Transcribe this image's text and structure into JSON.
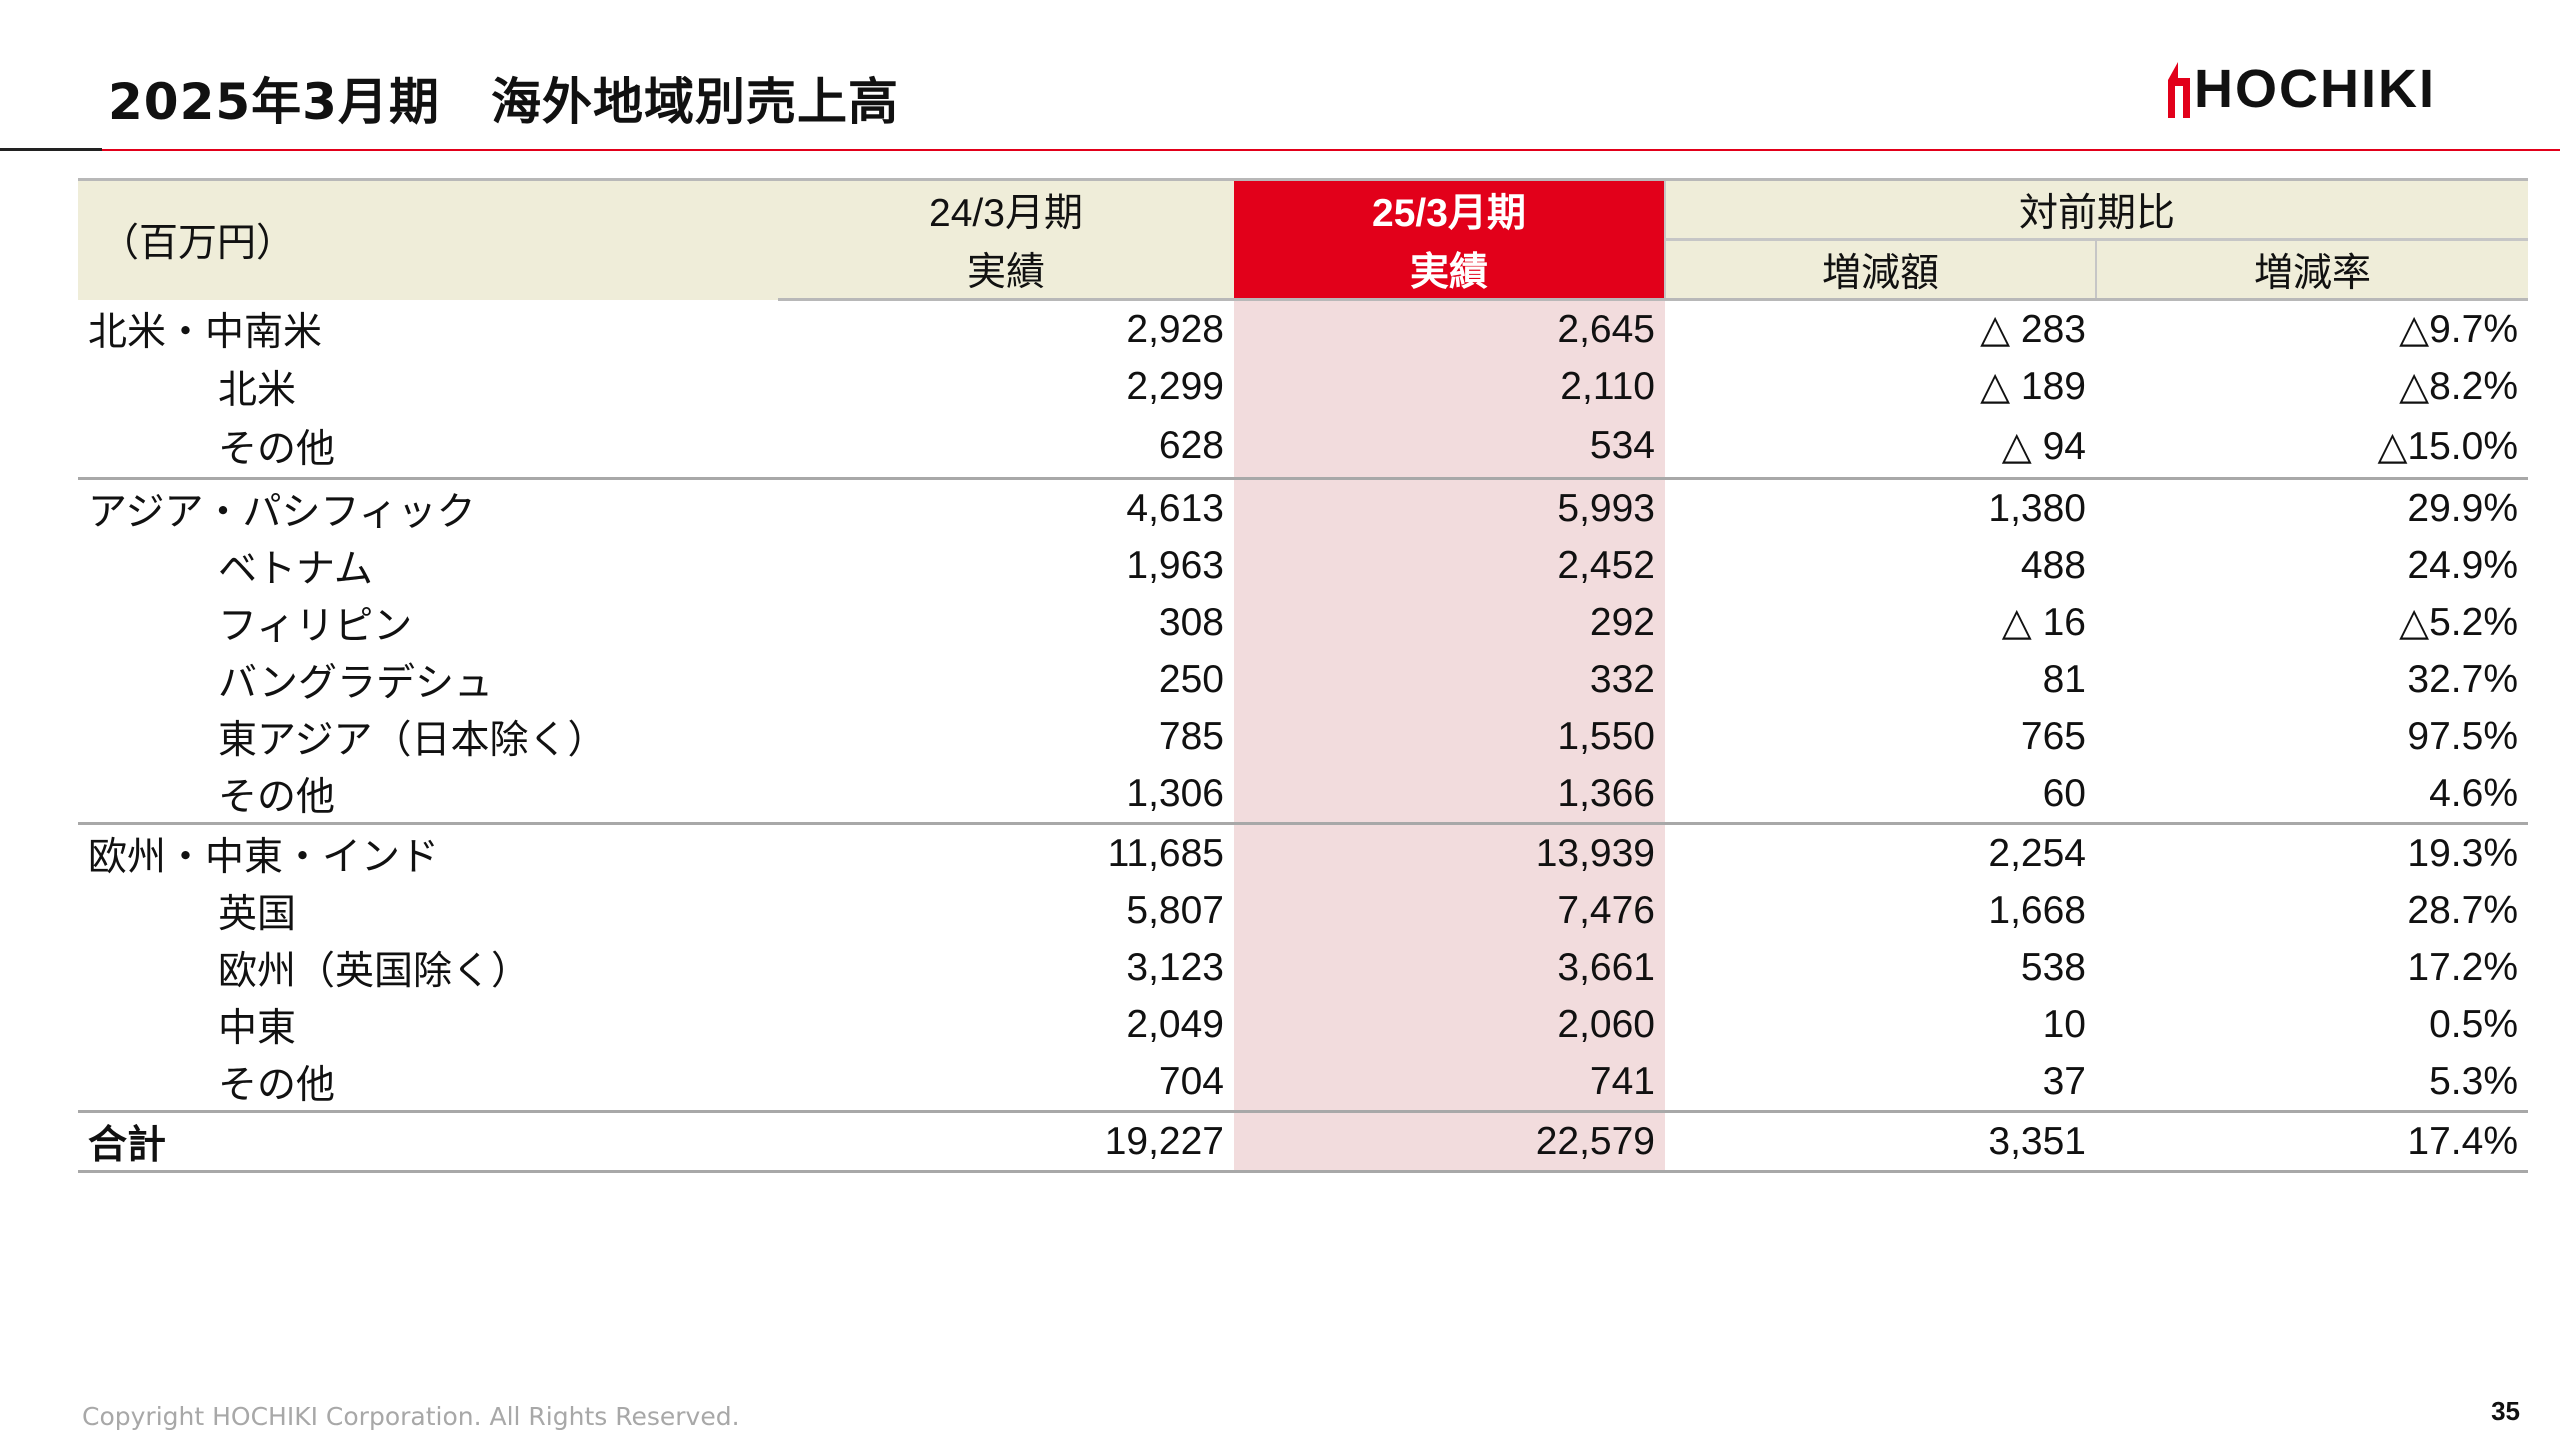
{
  "page": {
    "title": "2025年3月期　海外地域別売上高",
    "logo_text": "HOCHIKI",
    "brand_color": "#e2001a",
    "copyright": "Copyright HOCHIKI Corporation. All Rights Reserved.",
    "page_number": "35"
  },
  "table": {
    "unit_label": "（百万円）",
    "prev_period_label": "24/3月期",
    "prev_result_label": "実績",
    "cur_period_label": "25/3月期",
    "cur_result_label": "実績",
    "comparison_label": "対前期比",
    "change_amount_label": "増減額",
    "change_rate_label": "増減率",
    "rows": [
      {
        "name": "北米・中南米",
        "prev": "2,928",
        "cur": "2,645",
        "diff": "△ 283",
        "rate": "△9.7%"
      },
      {
        "name": "北米",
        "prev": "2,299",
        "cur": "2,110",
        "diff": "△ 189",
        "rate": "△8.2%"
      },
      {
        "name": "その他",
        "prev": "628",
        "cur": "534",
        "diff": "△ 94",
        "rate": "△15.0%"
      },
      {
        "name": "アジア・パシフィック",
        "prev": "4,613",
        "cur": "5,993",
        "diff": "1,380",
        "rate": "29.9%"
      },
      {
        "name": "ベトナム",
        "prev": "1,963",
        "cur": "2,452",
        "diff": "488",
        "rate": "24.9%"
      },
      {
        "name": "フィリピン",
        "prev": "308",
        "cur": "292",
        "diff": "△ 16",
        "rate": "△5.2%"
      },
      {
        "name": "バングラデシュ",
        "prev": "250",
        "cur": "332",
        "diff": "81",
        "rate": "32.7%"
      },
      {
        "name": "東アジア（日本除く）",
        "prev": "785",
        "cur": "1,550",
        "diff": "765",
        "rate": "97.5%"
      },
      {
        "name": "その他",
        "prev": "1,306",
        "cur": "1,366",
        "diff": "60",
        "rate": "4.6%"
      },
      {
        "name": "欧州・中東・インド",
        "prev": "11,685",
        "cur": "13,939",
        "diff": "2,254",
        "rate": "19.3%"
      },
      {
        "name": "英国",
        "prev": "5,807",
        "cur": "7,476",
        "diff": "1,668",
        "rate": "28.7%"
      },
      {
        "name": "欧州（英国除く）",
        "prev": "3,123",
        "cur": "3,661",
        "diff": "538",
        "rate": "17.2%"
      },
      {
        "name": "中東",
        "prev": "2,049",
        "cur": "2,060",
        "diff": "10",
        "rate": "0.5%"
      },
      {
        "name": "その他",
        "prev": "704",
        "cur": "741",
        "diff": "37",
        "rate": "5.3%"
      },
      {
        "name": "合計",
        "prev": "19,227",
        "cur": "22,579",
        "diff": "3,351",
        "rate": "17.4%"
      }
    ]
  }
}
